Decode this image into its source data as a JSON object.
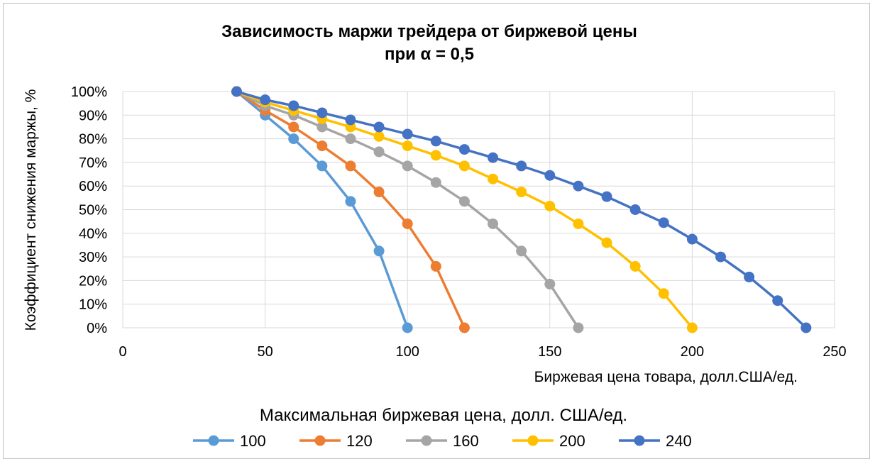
{
  "chart_data": {
    "type": "line",
    "title_line1": "Зависимость маржи трейдера от биржевой цены",
    "title_line2": "при α = 0,5",
    "xlabel": "Биржевая цена товара, долл.США/ед.",
    "ylabel": "Коэффициент снижения маржы, %",
    "xlim": [
      0,
      250
    ],
    "ylim": [
      0,
      100
    ],
    "x_ticks": [
      0,
      50,
      100,
      150,
      200,
      250
    ],
    "y_ticks": [
      {
        "value": 0,
        "label": "0%"
      },
      {
        "value": 10,
        "label": "10%"
      },
      {
        "value": 20,
        "label": "20%"
      },
      {
        "value": 30,
        "label": "30%"
      },
      {
        "value": 40,
        "label": "40%"
      },
      {
        "value": 50,
        "label": "50%"
      },
      {
        "value": 60,
        "label": "60%"
      },
      {
        "value": 70,
        "label": "70%"
      },
      {
        "value": 80,
        "label": "80%"
      },
      {
        "value": 90,
        "label": "90%"
      },
      {
        "value": 100,
        "label": "100%"
      }
    ],
    "grid": true,
    "legend_title": "Максимальная биржевая цена, долл. США/ед.",
    "legend_position": "bottom",
    "series": [
      {
        "name": "100",
        "color": "#5B9BD5",
        "x": [
          40,
          50,
          60,
          70,
          80,
          90,
          100
        ],
        "y": [
          100,
          90,
          80,
          68.5,
          53.5,
          32.5,
          0
        ]
      },
      {
        "name": "120",
        "color": "#ED7D31",
        "x": [
          40,
          50,
          60,
          70,
          80,
          90,
          100,
          110,
          120
        ],
        "y": [
          100,
          92,
          85,
          77,
          68.5,
          57.5,
          44,
          26,
          0
        ]
      },
      {
        "name": "160",
        "color": "#A5A5A5",
        "x": [
          40,
          50,
          60,
          70,
          80,
          90,
          100,
          110,
          120,
          130,
          140,
          150,
          160
        ],
        "y": [
          100,
          94,
          90,
          85,
          80,
          74.5,
          68.5,
          61.5,
          53.5,
          44,
          32.5,
          18.5,
          0
        ]
      },
      {
        "name": "200",
        "color": "#FFC000",
        "x": [
          40,
          50,
          60,
          70,
          80,
          90,
          100,
          110,
          120,
          130,
          140,
          150,
          160,
          170,
          180,
          190,
          200
        ],
        "y": [
          100,
          95.5,
          92,
          88.5,
          85,
          81,
          77,
          73,
          68.5,
          63,
          57.5,
          51.5,
          44,
          36,
          26,
          14.5,
          0
        ]
      },
      {
        "name": "240",
        "color": "#4472C4",
        "x": [
          40,
          50,
          60,
          70,
          80,
          90,
          100,
          110,
          120,
          130,
          140,
          150,
          160,
          170,
          180,
          190,
          200,
          210,
          220,
          230,
          240
        ],
        "y": [
          100,
          96.5,
          94,
          91,
          88,
          85,
          82,
          79,
          75.5,
          72,
          68.5,
          64.5,
          60,
          55.5,
          50,
          44.5,
          37.5,
          30,
          21.5,
          11.5,
          0
        ]
      }
    ]
  }
}
